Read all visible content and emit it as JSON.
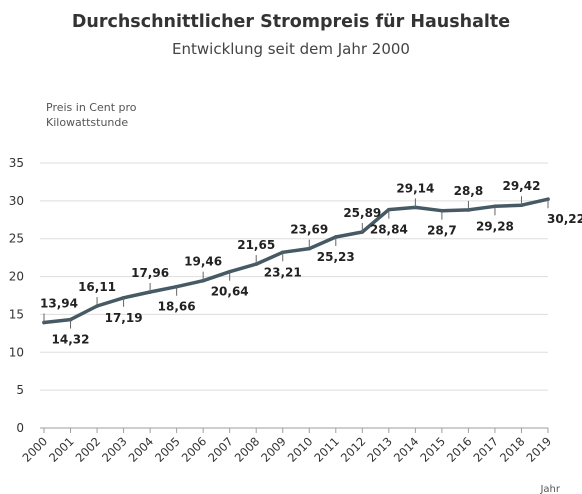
{
  "chart_data": {
    "type": "line",
    "title": "Durchschnittlicher Strompreis für Haushalte",
    "subtitle": "Entwicklung seit dem Jahr 2000",
    "ylabel_lines": [
      "Preis in Cent pro",
      "Kilowattstunde"
    ],
    "xlabel": "Jahr",
    "ylim": [
      0,
      35
    ],
    "yticks": [
      0,
      5,
      10,
      15,
      20,
      25,
      30,
      35
    ],
    "grid": "horizontal",
    "line_color": "#455a64",
    "categories": [
      "2000",
      "2001",
      "2002",
      "2003",
      "2004",
      "2005",
      "2006",
      "2007",
      "2008",
      "2009",
      "2010",
      "2011",
      "2012",
      "2013",
      "2014",
      "2015",
      "2016",
      "2017",
      "2018",
      "2019"
    ],
    "values": [
      13.94,
      14.32,
      16.11,
      17.19,
      17.96,
      18.66,
      19.46,
      20.64,
      21.65,
      23.21,
      23.69,
      25.23,
      25.89,
      28.84,
      29.14,
      28.7,
      28.8,
      29.28,
      29.42,
      30.22
    ],
    "data_labels": [
      "13,94",
      "14,32",
      "16,11",
      "17,19",
      "17,96",
      "18,66",
      "19,46",
      "20,64",
      "21,65",
      "23,21",
      "23,69",
      "25,23",
      "25,89",
      "28,84",
      "29,14",
      "28,7",
      "28,8",
      "29,28",
      "29,42",
      "30,22"
    ]
  }
}
